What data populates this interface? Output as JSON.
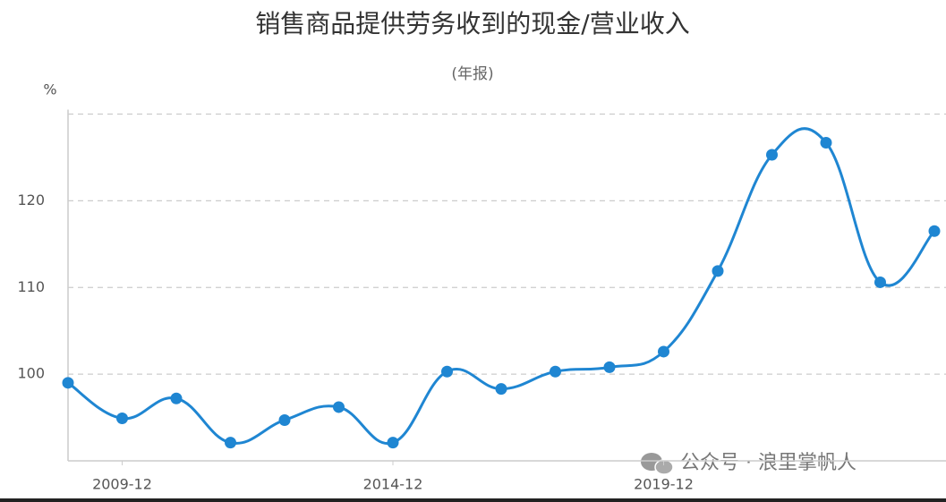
{
  "chart_data": {
    "type": "line",
    "title": "销售商品提供劳务收到的现金/营业收入",
    "subtitle": "(年报)",
    "y_label": "%",
    "watermark": "公众号 · 浪里掌帆人",
    "categories": [
      null,
      "2009-12",
      null,
      null,
      null,
      null,
      "2014-12",
      null,
      null,
      null,
      null,
      "2019-12",
      null,
      null,
      null,
      null,
      null
    ],
    "series": [
      {
        "name": "销售商品提供劳务收到的现金/营业收入",
        "color": "#1f86d2",
        "values": [
          99.0,
          94.9,
          97.2,
          92.1,
          94.7,
          96.2,
          92.1,
          100.3,
          98.3,
          100.3,
          100.8,
          102.6,
          111.9,
          125.3,
          126.7,
          110.6,
          116.5
        ]
      }
    ],
    "ylim": [
      90,
      130
    ],
    "yticks": [
      100,
      110,
      120
    ],
    "grid": true
  }
}
